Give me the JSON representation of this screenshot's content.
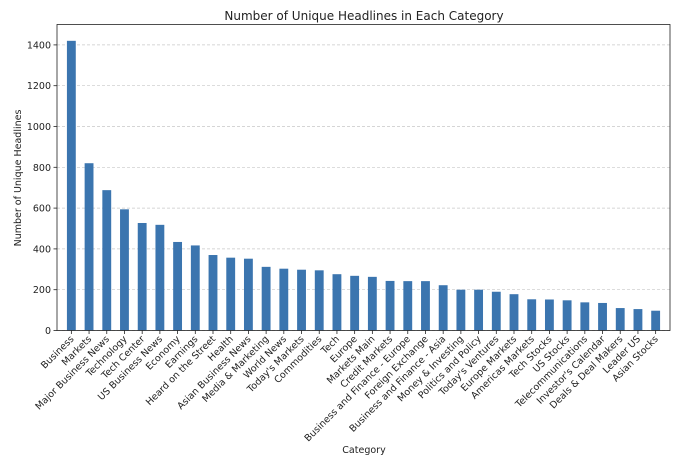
{
  "chart_data": {
    "type": "bar",
    "title": "Number of Unique Headlines in Each Category",
    "xlabel": "Category",
    "ylabel": "Number of Unique Headlines",
    "ylim": [
      0,
      1500
    ],
    "yticks": [
      0,
      200,
      400,
      600,
      800,
      1000,
      1200,
      1400
    ],
    "grid": true,
    "bar_color": "#3b75af",
    "categories": [
      "Business",
      "Markets",
      "Major Business News",
      "Technology",
      "Tech Center",
      "US Business News",
      "Economy",
      "Earnings",
      "Heard on the Street",
      "Health",
      "Asian Business News",
      "Media & Marketing",
      "World News",
      "Today's Markets",
      "Commodities",
      "Tech",
      "Europe",
      "Markets Main",
      "Credit Markets",
      "Business and Finance - Europe",
      "Foreign Exchange",
      "Business and Finance - Asia",
      "Money & Investing",
      "Politics and Policy",
      "Today's Ventures",
      "Europe Markets",
      "Americas Markets",
      "Tech Stocks",
      "US Stocks",
      "Telecommunications",
      "Investor's Calendar",
      "Deals & Deal Makers",
      "Leader US",
      "Asian Stocks"
    ],
    "values": [
      1420,
      820,
      688,
      594,
      527,
      518,
      434,
      417,
      370,
      357,
      352,
      312,
      303,
      298,
      295,
      276,
      268,
      263,
      243,
      242,
      242,
      222,
      200,
      200,
      190,
      178,
      153,
      152,
      148,
      138,
      135,
      110,
      105,
      97
    ]
  }
}
